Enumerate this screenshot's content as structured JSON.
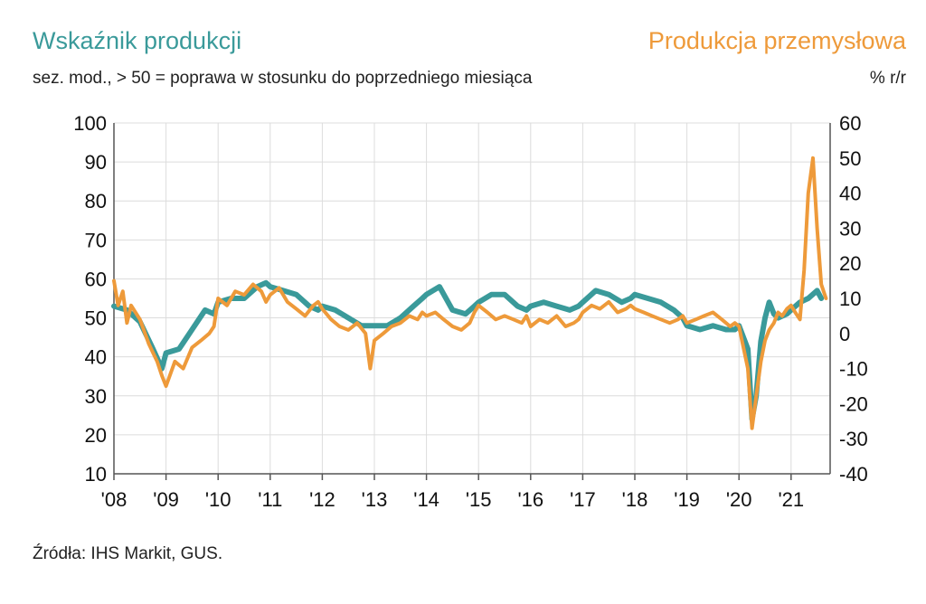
{
  "header": {
    "title_left": "Wskaźnik produkcji",
    "title_right": "Produkcja przemysłowa",
    "subtitle": "sez. mod., > 50 = poprawa w stosunku do poprzedniego miesiąca",
    "unit_right": "% r/r"
  },
  "footer": {
    "source": "Źródła: IHS Markit, GUS."
  },
  "chart_data": {
    "type": "line",
    "title": "Wskaźnik produkcji / Produkcja przemysłowa",
    "x_tick_labels": [
      "'08",
      "'09",
      "'10",
      "'11",
      "'12",
      "'13",
      "'14",
      "'15",
      "'16",
      "'17",
      "'18",
      "'19",
      "'20",
      "'21"
    ],
    "x_range": [
      2008.0,
      2021.75
    ],
    "left_axis": {
      "label": "Wskaźnik produkcji (sez. mod.)",
      "ylim": [
        10,
        100
      ],
      "ticks": [
        10,
        20,
        30,
        40,
        50,
        60,
        70,
        80,
        90,
        100
      ]
    },
    "right_axis": {
      "label": "% r/r",
      "ylim": [
        -40,
        60
      ],
      "ticks": [
        -40,
        -30,
        -20,
        -10,
        0,
        10,
        20,
        30,
        40,
        50,
        60
      ]
    },
    "grid": true,
    "series": [
      {
        "name": "Wskaźnik produkcji",
        "axis": "left",
        "color": "#3a9a9a",
        "points": [
          [
            2008.0,
            53
          ],
          [
            2008.25,
            52
          ],
          [
            2008.5,
            49
          ],
          [
            2008.75,
            42
          ],
          [
            2008.92,
            37
          ],
          [
            2009.0,
            41
          ],
          [
            2009.25,
            42
          ],
          [
            2009.5,
            47
          ],
          [
            2009.75,
            52
          ],
          [
            2009.92,
            51
          ],
          [
            2010.0,
            54
          ],
          [
            2010.25,
            55
          ],
          [
            2010.5,
            55
          ],
          [
            2010.75,
            58
          ],
          [
            2010.92,
            59
          ],
          [
            2011.0,
            58
          ],
          [
            2011.25,
            57
          ],
          [
            2011.5,
            56
          ],
          [
            2011.75,
            53
          ],
          [
            2011.92,
            52
          ],
          [
            2012.0,
            53
          ],
          [
            2012.25,
            52
          ],
          [
            2012.5,
            50
          ],
          [
            2012.75,
            48
          ],
          [
            2012.92,
            48
          ],
          [
            2013.0,
            48
          ],
          [
            2013.25,
            48
          ],
          [
            2013.5,
            50
          ],
          [
            2013.75,
            53
          ],
          [
            2013.92,
            55
          ],
          [
            2014.0,
            56
          ],
          [
            2014.25,
            58
          ],
          [
            2014.5,
            52
          ],
          [
            2014.75,
            51
          ],
          [
            2014.92,
            53
          ],
          [
            2015.0,
            54
          ],
          [
            2015.25,
            56
          ],
          [
            2015.5,
            56
          ],
          [
            2015.75,
            53
          ],
          [
            2015.92,
            52
          ],
          [
            2016.0,
            53
          ],
          [
            2016.25,
            54
          ],
          [
            2016.5,
            53
          ],
          [
            2016.75,
            52
          ],
          [
            2016.92,
            53
          ],
          [
            2017.0,
            54
          ],
          [
            2017.25,
            57
          ],
          [
            2017.5,
            56
          ],
          [
            2017.75,
            54
          ],
          [
            2017.92,
            55
          ],
          [
            2018.0,
            56
          ],
          [
            2018.25,
            55
          ],
          [
            2018.5,
            54
          ],
          [
            2018.75,
            52
          ],
          [
            2018.92,
            50
          ],
          [
            2019.0,
            48
          ],
          [
            2019.25,
            47
          ],
          [
            2019.5,
            48
          ],
          [
            2019.75,
            47
          ],
          [
            2019.92,
            47
          ],
          [
            2020.0,
            48
          ],
          [
            2020.17,
            42
          ],
          [
            2020.25,
            24
          ],
          [
            2020.33,
            30
          ],
          [
            2020.42,
            44
          ],
          [
            2020.5,
            50
          ],
          [
            2020.58,
            54
          ],
          [
            2020.67,
            51
          ],
          [
            2020.75,
            50
          ],
          [
            2020.92,
            51
          ],
          [
            2021.0,
            52
          ],
          [
            2021.17,
            54
          ],
          [
            2021.33,
            55
          ],
          [
            2021.5,
            57
          ],
          [
            2021.58,
            55
          ]
        ]
      },
      {
        "name": "Produkcja przemysłowa",
        "axis": "right",
        "color": "#ee9a3a",
        "points": [
          [
            2008.0,
            15
          ],
          [
            2008.08,
            8
          ],
          [
            2008.17,
            12
          ],
          [
            2008.25,
            3
          ],
          [
            2008.33,
            8
          ],
          [
            2008.5,
            4
          ],
          [
            2008.67,
            -3
          ],
          [
            2008.83,
            -8
          ],
          [
            2008.92,
            -12
          ],
          [
            2009.0,
            -15
          ],
          [
            2009.17,
            -8
          ],
          [
            2009.33,
            -10
          ],
          [
            2009.5,
            -4
          ],
          [
            2009.67,
            -2
          ],
          [
            2009.83,
            0
          ],
          [
            2009.92,
            2
          ],
          [
            2010.0,
            10
          ],
          [
            2010.17,
            8
          ],
          [
            2010.33,
            12
          ],
          [
            2010.5,
            11
          ],
          [
            2010.67,
            14
          ],
          [
            2010.83,
            12
          ],
          [
            2010.92,
            9
          ],
          [
            2011.0,
            11
          ],
          [
            2011.17,
            13
          ],
          [
            2011.33,
            9
          ],
          [
            2011.5,
            7
          ],
          [
            2011.67,
            5
          ],
          [
            2011.83,
            8
          ],
          [
            2011.92,
            9
          ],
          [
            2012.0,
            7
          ],
          [
            2012.17,
            4
          ],
          [
            2012.33,
            2
          ],
          [
            2012.5,
            1
          ],
          [
            2012.67,
            3
          ],
          [
            2012.83,
            0
          ],
          [
            2012.92,
            -10
          ],
          [
            2013.0,
            -2
          ],
          [
            2013.17,
            0
          ],
          [
            2013.33,
            2
          ],
          [
            2013.5,
            3
          ],
          [
            2013.67,
            5
          ],
          [
            2013.83,
            4
          ],
          [
            2013.92,
            6
          ],
          [
            2014.0,
            5
          ],
          [
            2014.17,
            6
          ],
          [
            2014.33,
            4
          ],
          [
            2014.5,
            2
          ],
          [
            2014.67,
            1
          ],
          [
            2014.83,
            3
          ],
          [
            2014.92,
            6
          ],
          [
            2015.0,
            8
          ],
          [
            2015.17,
            6
          ],
          [
            2015.33,
            4
          ],
          [
            2015.5,
            5
          ],
          [
            2015.67,
            4
          ],
          [
            2015.83,
            3
          ],
          [
            2015.92,
            5
          ],
          [
            2016.0,
            2
          ],
          [
            2016.17,
            4
          ],
          [
            2016.33,
            3
          ],
          [
            2016.5,
            5
          ],
          [
            2016.67,
            2
          ],
          [
            2016.83,
            3
          ],
          [
            2016.92,
            4
          ],
          [
            2017.0,
            6
          ],
          [
            2017.17,
            8
          ],
          [
            2017.33,
            7
          ],
          [
            2017.5,
            9
          ],
          [
            2017.67,
            6
          ],
          [
            2017.83,
            7
          ],
          [
            2017.92,
            8
          ],
          [
            2018.0,
            7
          ],
          [
            2018.17,
            6
          ],
          [
            2018.33,
            5
          ],
          [
            2018.5,
            4
          ],
          [
            2018.67,
            3
          ],
          [
            2018.83,
            4
          ],
          [
            2018.92,
            5
          ],
          [
            2019.0,
            3
          ],
          [
            2019.17,
            4
          ],
          [
            2019.33,
            5
          ],
          [
            2019.5,
            6
          ],
          [
            2019.67,
            4
          ],
          [
            2019.83,
            2
          ],
          [
            2019.92,
            3
          ],
          [
            2020.0,
            2
          ],
          [
            2020.17,
            -10
          ],
          [
            2020.25,
            -27
          ],
          [
            2020.33,
            -18
          ],
          [
            2020.42,
            -8
          ],
          [
            2020.5,
            -2
          ],
          [
            2020.58,
            1
          ],
          [
            2020.67,
            3
          ],
          [
            2020.75,
            6
          ],
          [
            2020.83,
            5
          ],
          [
            2020.92,
            7
          ],
          [
            2021.0,
            8
          ],
          [
            2021.08,
            6
          ],
          [
            2021.17,
            4
          ],
          [
            2021.25,
            18
          ],
          [
            2021.33,
            40
          ],
          [
            2021.42,
            50
          ],
          [
            2021.5,
            30
          ],
          [
            2021.58,
            14
          ],
          [
            2021.67,
            10
          ]
        ]
      }
    ]
  }
}
